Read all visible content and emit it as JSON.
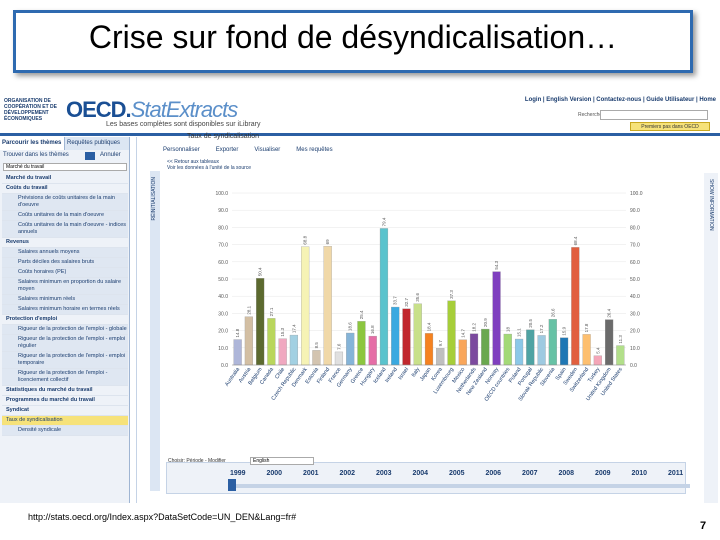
{
  "slide": {
    "title": "Crise sur fond de désyndicalisation…",
    "url": "http://stats.oecd.org/Index.aspx?DataSetCode=UN_DEN&Lang=fr#",
    "page": "7"
  },
  "header": {
    "org": "ORGANISATION DE COOPÉRATION ET DE DÉVELOPPEMENT ÉCONOMIQUES",
    "logo_main": "OECD.",
    "logo_sub": "StatExtracts",
    "tagline": "Les bases complètes sont disponibles sur iLibrary",
    "top_links": "Login | English Version | Contactez-nous | Guide Utilisateur | Home",
    "search_label": "Rechercher",
    "premiers_label": "Premiers pas dans OECD"
  },
  "sidebar": {
    "tabs": [
      "Parcourir les thèmes",
      "Requêtes publiques"
    ],
    "find_label": "Trouver dans les thèmes",
    "clear_label": "Annuler",
    "select_value": "Marché du travail",
    "items": [
      {
        "label": "Marché du travail",
        "type": "head"
      },
      {
        "label": "Coûts du travail",
        "type": "head"
      },
      {
        "label": "Prévisions de coûts unitaires de la main d'oeuvre",
        "type": "sub"
      },
      {
        "label": "Coûts unitaires de la main d'oeuvre",
        "type": "sub"
      },
      {
        "label": "Coûts unitaires de la main d'oeuvre - indices annuels",
        "type": "sub"
      },
      {
        "label": "Revenus",
        "type": "head"
      },
      {
        "label": "Salaires annuels moyens",
        "type": "sub"
      },
      {
        "label": "Parts déciles des salaires bruts",
        "type": "sub"
      },
      {
        "label": "Coûts horaires (PE)",
        "type": "sub"
      },
      {
        "label": "Salaires minimum en proportion du salaire moyen",
        "type": "sub"
      },
      {
        "label": "Salaires minimum réels",
        "type": "sub"
      },
      {
        "label": "Salaires minimum horaire en termes réels",
        "type": "sub"
      },
      {
        "label": "Protection d'emploi",
        "type": "head"
      },
      {
        "label": "Rigueur de la protection de l'emploi - globale",
        "type": "sub"
      },
      {
        "label": "Rigueur de la protection de l'emploi - emploi régulier",
        "type": "sub"
      },
      {
        "label": "Rigueur de la protection de l'emploi - emploi temporaire",
        "type": "sub"
      },
      {
        "label": "Rigueur de la protection de l'emploi - licenciement collectif",
        "type": "sub"
      },
      {
        "label": "Statistiques du marché du travail",
        "type": "head"
      },
      {
        "label": "Programmes du marché du travail",
        "type": "head"
      },
      {
        "label": "Syndicat",
        "type": "head"
      },
      {
        "label": "Taux de syndicalisation",
        "type": "sel"
      },
      {
        "label": "Densité syndicale",
        "type": "sub"
      }
    ]
  },
  "main": {
    "title": "Taux de syndicalisation",
    "toolbar": [
      "Personnaliser",
      "Exporter",
      "Visualiser",
      "Mes requêtes"
    ],
    "nav_back": "<< Retour aux tableaux",
    "nav_source": "Voir les données à l'unité de la source",
    "left_strip": "RÉINITIALISATION",
    "right_strip": "SHOW INFORMATION",
    "time_label": "Choisir: Période - Modifier",
    "time_value": "English",
    "years": [
      "1999",
      "2000",
      "2001",
      "2002",
      "2003",
      "2004",
      "2005",
      "2006",
      "2007",
      "2008",
      "2009",
      "2010",
      "2011"
    ]
  },
  "chart_data": {
    "type": "bar",
    "ylim": [
      0,
      100
    ],
    "yticks": [
      "0.0",
      "10.0",
      "20.0",
      "30.0",
      "40.0",
      "50.0",
      "60.0",
      "70.0",
      "80.0",
      "90.0",
      "100.0"
    ],
    "categories": [
      "Australia",
      "Austria",
      "Belgium",
      "Canada",
      "Chile",
      "Czech Republic",
      "Denmark",
      "Estonia",
      "Finland",
      "France",
      "Germany",
      "Greece",
      "Hungary",
      "Iceland",
      "Ireland",
      "Israel",
      "Italy",
      "Japan",
      "Korea",
      "Luxembourg",
      "Mexico",
      "Netherlands",
      "New Zealand",
      "Norway",
      "OECD countries",
      "Poland",
      "Portugal",
      "Slovak Republic",
      "Slovenia",
      "Spain",
      "Sweden",
      "Switzerland",
      "Turkey",
      "United Kingdom",
      "United States"
    ],
    "values": [
      14.8,
      28.1,
      50.4,
      27.1,
      15.3,
      17.4,
      68.8,
      8.5,
      69.0,
      7.6,
      18.6,
      25.4,
      16.8,
      79.4,
      33.7,
      32.7,
      35.6,
      18.4,
      9.7,
      37.3,
      14.7,
      18.2,
      20.9,
      54.3,
      18.0,
      15.1,
      20.5,
      17.2,
      26.6,
      15.9,
      68.4,
      17.8,
      5.4,
      26.4,
      11.3
    ],
    "colors": [
      "#aeb6d9",
      "#d3bfa3",
      "#5c6a2f",
      "#b9d65c",
      "#f0a8c0",
      "#a2d0e2",
      "#f6f3b5",
      "#d3c4b0",
      "#f0d8a8",
      "#e0e0e0",
      "#85b4d8",
      "#8cc63f",
      "#e56da6",
      "#5ac3cd",
      "#3aa9e0",
      "#c1272d",
      "#c8e08a",
      "#f58220",
      "#bfbfbf",
      "#a6ce39",
      "#f9a65a",
      "#7b4a9e",
      "#6aa84f",
      "#7f3fbf",
      "#a3d977",
      "#8cc8e8",
      "#4fa3a3",
      "#9ecae1",
      "#66c2a5",
      "#1f77b4",
      "#e15f3f",
      "#fdbf6f",
      "#f4a6b8",
      "#6b6b6b",
      "#b2df8a"
    ]
  }
}
